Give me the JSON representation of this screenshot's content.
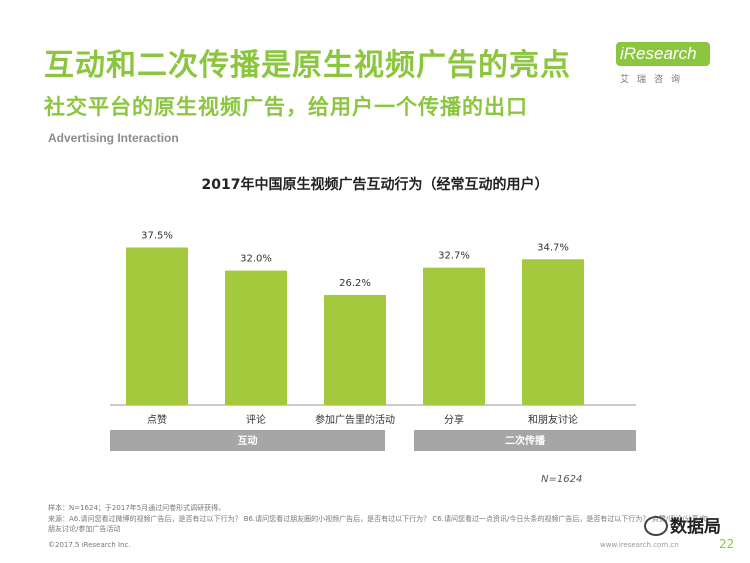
{
  "slide": {
    "title": "互动和二次传播是原生视频广告的亮点",
    "subtitle": "社交平台的原生视频广告，给用户一个传播的出口",
    "section_label": "Advertising Interaction",
    "logo_text": "iResearch",
    "logo_sub": "艾瑞咨询",
    "n_label": "N=1624",
    "footnote_sample": "样本：N=1624；于2017年5月通过问卷形式调研获得。",
    "footnote_source": "来源：A6.请问您看过微博的视频广告后，是否有过以下行为？ B6.请问您看过朋友圈的小视频广告后，是否有过以下行为？ C6.请问您看过一点资讯/今日头条的视频广告后，是否有过以下行为？-点赞/评论/分享/和朋友讨论/参加广告活动",
    "copyright": "©2017.5 iResearch Inc.",
    "website": "www.iresearch.com.cn",
    "watermark": "数据局",
    "page_number": "22",
    "brand_color": "#8cc63f"
  },
  "chart_data": {
    "type": "bar",
    "title": "2017年中国原生视频广告互动行为（经常互动的用户）",
    "categories": [
      "点赞",
      "评论",
      "参加广告里的活动",
      "分享",
      "和朋友讨论"
    ],
    "values": [
      37.5,
      32.0,
      26.2,
      32.7,
      34.7
    ],
    "value_labels": [
      "37.5%",
      "32.0%",
      "26.2%",
      "32.7%",
      "34.7%"
    ],
    "groups": [
      {
        "label": "互动",
        "categories": [
          "点赞",
          "评论",
          "参加广告里的活动"
        ]
      },
      {
        "label": "二次传播",
        "categories": [
          "分享",
          "和朋友讨论"
        ]
      }
    ],
    "xlabel": "",
    "ylabel": "",
    "grid": false,
    "bar_color": "#a5c93d",
    "group_color": "#a6a6a6"
  }
}
